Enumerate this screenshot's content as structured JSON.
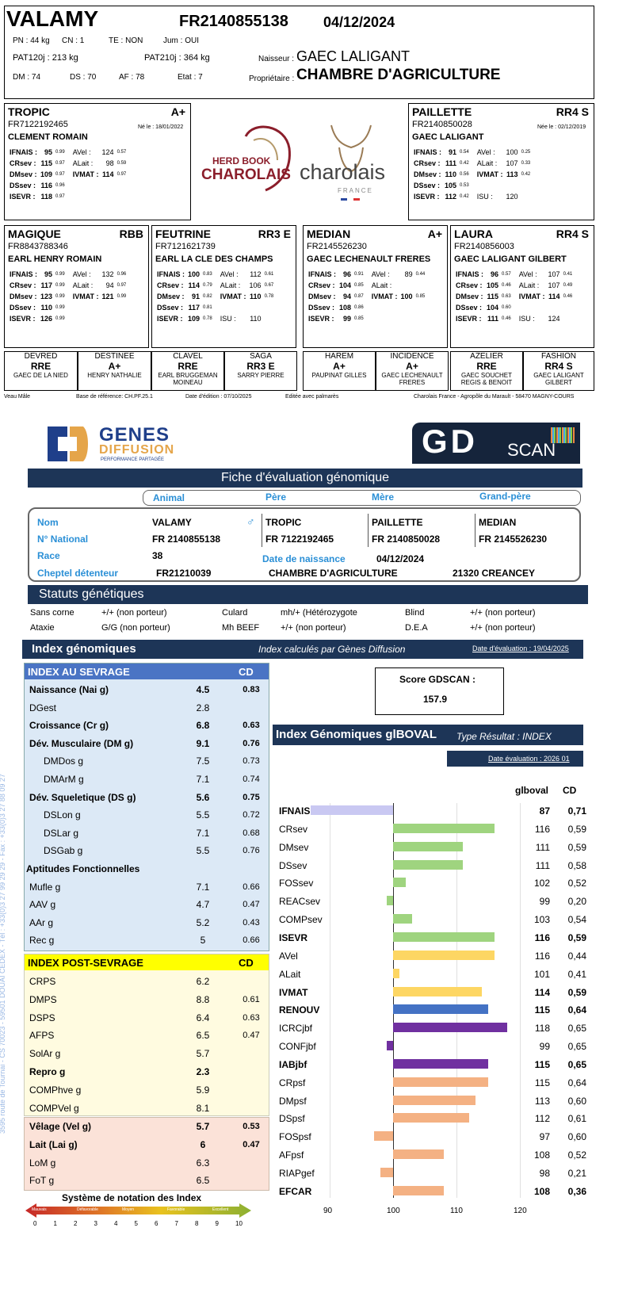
{
  "header": {
    "name": "VALAMY",
    "id": "FR2140855138",
    "date": "04/12/2024",
    "pn": "PN : 44 kg",
    "cn": "CN : 1",
    "te": "TE : NON",
    "jum": "Jum : OUI",
    "pat120": "PAT120j : 213 kg",
    "pat210": "PAT210j : 364 kg",
    "dm": "DM : 74",
    "ds": "DS : 70",
    "af": "AF : 78",
    "etat": "Etat : 7",
    "naisseur_label": "Naisseur :",
    "naisseur": "GAEC LALIGANT",
    "proprio_label": "Propriétaire :",
    "proprio": "CHAMBRE D'AGRICULTURE"
  },
  "logos": {
    "herdbook_top": "HERD BOOK",
    "herdbook_main": "CHAROLAIS",
    "charolais": "charolais",
    "france": "FRANCE"
  },
  "sire": {
    "name": "TROPIC",
    "rank": "A+",
    "id": "FR7122192465",
    "born": "Né le : 18/01/2022",
    "owner": "CLEMENT ROMAIN",
    "rows": [
      [
        "IFNAIS :",
        "95",
        "0.99",
        "AVel :",
        "124",
        "0.57"
      ],
      [
        "CRsev :",
        "115",
        "0.97",
        "ALait :",
        "98",
        "0.59"
      ],
      [
        "DMsev :",
        "109",
        "0.97",
        "IVMAT :",
        "114",
        "0.97"
      ],
      [
        "DSsev :",
        "116",
        "0.96",
        "",
        "",
        ""
      ],
      [
        "ISEVR :",
        "118",
        "0.97",
        "",
        "",
        ""
      ]
    ]
  },
  "dam": {
    "name": "PAILLETTE",
    "rank": "RR4 S",
    "id": "FR2140850028",
    "born": "Née le : 02/12/2019",
    "owner": "GAEC LALIGANT",
    "rows": [
      [
        "IFNAIS :",
        "91",
        "0.54",
        "AVel :",
        "100",
        "0.25"
      ],
      [
        "CRsev :",
        "111",
        "0.42",
        "ALait :",
        "107",
        "0.33"
      ],
      [
        "DMsev :",
        "110",
        "0.56",
        "IVMAT :",
        "113",
        "0.42"
      ],
      [
        "DSsev :",
        "105",
        "0.53",
        "",
        "",
        " "
      ],
      [
        "ISEVR :",
        "112",
        "0.42",
        "ISU :",
        "120",
        ""
      ]
    ]
  },
  "gp": [
    {
      "name": "MAGIQUE",
      "rank": "RBB",
      "id": "FR8843788346",
      "owner": "EARL HENRY ROMAIN",
      "rows": [
        [
          "IFNAIS :",
          "95",
          "0.99",
          "AVel :",
          "132",
          "0.96"
        ],
        [
          "CRsev :",
          "117",
          "0.99",
          "ALait :",
          "94",
          "0.97"
        ],
        [
          "DMsev :",
          "123",
          "0.99",
          "IVMAT :",
          "121",
          "0.99"
        ],
        [
          "DSsev :",
          "110",
          "0.99",
          "",
          "",
          ""
        ],
        [
          "ISEVR :",
          "126",
          "0.99",
          "",
          "",
          ""
        ]
      ]
    },
    {
      "name": "FEUTRINE",
      "rank": "RR3 E",
      "id": "FR7121621739",
      "owner": "EARL LA CLE DES CHAMPS",
      "rows": [
        [
          "IFNAIS :",
          "100",
          "0.83",
          "AVel :",
          "112",
          "0.61"
        ],
        [
          "CRsev :",
          "114",
          "0.79",
          "ALait :",
          "106",
          "0.67"
        ],
        [
          "DMsev :",
          "91",
          "0.82",
          "IVMAT :",
          "110",
          "0.78"
        ],
        [
          "DSsev :",
          "117",
          "0.81",
          "",
          "",
          ""
        ],
        [
          "ISEVR :",
          "109",
          "0.78",
          "ISU :",
          "110",
          ""
        ]
      ]
    },
    {
      "name": "MEDIAN",
      "rank": "A+",
      "id": "FR2145526230",
      "owner": "GAEC LECHENAULT FRERES",
      "rows": [
        [
          "IFNAIS :",
          "96",
          "0.91",
          "AVel :",
          "89",
          "0.44"
        ],
        [
          "CRsev :",
          "104",
          "0.85",
          "ALait :",
          "",
          ""
        ],
        [
          "DMsev :",
          "94",
          "0.87",
          "IVMAT :",
          "100",
          "0.85"
        ],
        [
          "DSsev :",
          "108",
          "0.86",
          "",
          "",
          ""
        ],
        [
          "ISEVR :",
          "99",
          "0.85",
          "",
          "",
          ""
        ]
      ]
    },
    {
      "name": "LAURA",
      "rank": "RR4 S",
      "id": "FR2140856003",
      "owner": "GAEC LALIGANT GILBERT",
      "rows": [
        [
          "IFNAIS :",
          "96",
          "0.57",
          "AVel :",
          "107",
          "0.41"
        ],
        [
          "CRsev :",
          "105",
          "0.46",
          "ALait :",
          "107",
          "0.49"
        ],
        [
          "DMsev :",
          "115",
          "0.63",
          "IVMAT :",
          "114",
          "0.46"
        ],
        [
          "DSsev :",
          "104",
          "0.60",
          "",
          "",
          ""
        ],
        [
          "ISEVR :",
          "111",
          "0.46",
          "ISU :",
          "124",
          ""
        ]
      ]
    }
  ],
  "ggp": [
    {
      "name": "DEVRED",
      "rank": "RRE",
      "owner": "GAEC DE LA NIED"
    },
    {
      "name": "DESTINEE",
      "rank": "A+",
      "owner": "HENRY NATHALIE"
    },
    {
      "name": "CLAVEL",
      "rank": "RRE",
      "owner": "EARL BRUGGEMAN MOINEAU"
    },
    {
      "name": "SAGA",
      "rank": "RR3 E",
      "owner": "SARRY PIERRE"
    },
    {
      "name": "HAREM",
      "rank": "A+",
      "owner": "PAUPINAT GILLES"
    },
    {
      "name": "INCIDENCE",
      "rank": "A+",
      "owner": "GAEC LECHENAULT FRERES"
    },
    {
      "name": "AZELIER",
      "rank": "RRE",
      "owner": "GAEC SOUCHET REGIS & BENOIT"
    },
    {
      "name": "FASHION",
      "rank": "RR4 S",
      "owner": "GAEC LALIGANT GILBERT"
    }
  ],
  "footer": {
    "sex": "Veau Mâle",
    "base": "Base de référence: CH.PF.25.1",
    "edit": "Date d'édition : 07/10/2025",
    "palm": "Editée avec palmarès",
    "addr": "Charolais France - Agropôle du Marault - 58470 MAGNY-COURS"
  },
  "gd": {
    "logo_genes": "GENES",
    "logo_diff": "DIFFUSION",
    "logo_tag": "PERFORMANCE PARTAGÉE",
    "logo_gd": "GD",
    "logo_scan": "SCAN",
    "title": "Fiche d'évaluation génomique",
    "cols": {
      "animal": "Animal",
      "pere": "Père",
      "mere": "Mère",
      "gp": "Grand-père"
    },
    "labels": {
      "nom": "Nom",
      "nat": "N° National",
      "race": "Race",
      "chep": "Cheptel détenteur",
      "dn": "Date de naissance"
    },
    "animal": {
      "nom": "VALAMY",
      "nat": "FR 2140855138",
      "race": "38",
      "dn": "04/12/2024",
      "chep": "FR21210039",
      "chep_name": "CHAMBRE D'AGRICULTURE",
      "chep_city": "21320 CREANCEY"
    },
    "pere": {
      "nom": "TROPIC",
      "nat": "FR 7122192465"
    },
    "mere": {
      "nom": "PAILLETTE",
      "nat": "FR 2140850028"
    },
    "gpere": {
      "nom": "MEDIAN",
      "nat": "FR 2145526230"
    },
    "statuts_title": "Statuts génétiques",
    "statuts": [
      [
        "Sans corne",
        "+/+ (non porteur)",
        "Culard",
        "mh/+ (Hétérozygote",
        "Blind",
        "+/+ (non porteur)"
      ],
      [
        "Ataxie",
        "G/G (non porteur)",
        "Mh BEEF",
        "+/+ (non porteur)",
        "D.E.A",
        "+/+ (non porteur)"
      ]
    ],
    "index_title": "Index génomiques",
    "index_calc": "Index calculés par Gènes Diffusion",
    "index_date": "Date d'évaluation : 19/04/2025",
    "sevrage_title": "INDEX AU SEVRAGE",
    "cd": "CD",
    "post_title": "INDEX POST-SEVRAGE",
    "score_label": "Score GDSCAN :",
    "score": "157.9",
    "iboval_title": "Index Génomiques glBOVAL",
    "iboval_type": "Type Résultat : INDEX",
    "iboval_date": "Date évaluation : 2026 01",
    "col_val": "glboval",
    "col_cd": "CD",
    "notation": "Système de notation des Index",
    "notation_labels": [
      "Mauvais",
      "Défavorable",
      "Moyen",
      "Favorable",
      "Excellent"
    ],
    "notation_scale": [
      "0",
      "1",
      "2",
      "3",
      "4",
      "5",
      "6",
      "7",
      "8",
      "9",
      "10"
    ],
    "side_text": "3595 route de Tournai - CS 70023 - 59501 DOUAI CEDEX - Tél : +33(0)3 27 99 29 29 - Fax : +33(0)3 27 88 09 27"
  },
  "sevrage": [
    {
      "l": "Naissance (Nai g)",
      "v": "4.5",
      "c": "0.83",
      "b": true,
      "i": 0
    },
    {
      "l": "DGest",
      "v": "2.8",
      "c": "",
      "b": false,
      "i": 0
    },
    {
      "l": "Croissance (Cr g)",
      "v": "6.8",
      "c": "0.63",
      "b": true,
      "i": 0
    },
    {
      "l": "Dév. Musculaire (DM g)",
      "v": "9.1",
      "c": "0.76",
      "b": true,
      "i": 0
    },
    {
      "l": "DMDos g",
      "v": "7.5",
      "c": "0.73",
      "b": false,
      "i": 1
    },
    {
      "l": "DMArM g",
      "v": "7.1",
      "c": "0.74",
      "b": false,
      "i": 1
    },
    {
      "l": "Dév. Squeletique (DS g)",
      "v": "5.6",
      "c": "0.75",
      "b": true,
      "i": 0
    },
    {
      "l": "DSLon g",
      "v": "5.5",
      "c": "0.72",
      "b": false,
      "i": 1
    },
    {
      "l": "DSLar g",
      "v": "7.1",
      "c": "0.68",
      "b": false,
      "i": 1
    },
    {
      "l": "DSGab g",
      "v": "5.5",
      "c": "0.76",
      "b": false,
      "i": 1
    },
    {
      "l": "Aptitudes Fonctionnelles",
      "v": "",
      "c": "",
      "b": true,
      "i": -1
    },
    {
      "l": "Mufle g",
      "v": "7.1",
      "c": "0.66",
      "b": false,
      "i": 0
    },
    {
      "l": "AAV g",
      "v": "4.7",
      "c": "0.47",
      "b": false,
      "i": 0
    },
    {
      "l": "AAr g",
      "v": "5.2",
      "c": "0.43",
      "b": false,
      "i": 0
    },
    {
      "l": "Rec g",
      "v": "5",
      "c": "0.66",
      "b": false,
      "i": 0
    }
  ],
  "post": [
    {
      "l": "CRPS",
      "v": "6.2",
      "c": "",
      "b": false
    },
    {
      "l": "DMPS",
      "v": "8.8",
      "c": "0.61",
      "b": false
    },
    {
      "l": "DSPS",
      "v": "6.4",
      "c": "0.63",
      "b": false
    },
    {
      "l": "AFPS",
      "v": "6.5",
      "c": "0.47",
      "b": false
    },
    {
      "l": "SolAr g",
      "v": "5.7",
      "c": "",
      "b": false
    },
    {
      "l": "Repro g",
      "v": "2.3",
      "c": "",
      "b": true
    },
    {
      "l": "COMPhve g",
      "v": "5.9",
      "c": "",
      "b": false
    },
    {
      "l": "COMPVel g",
      "v": "8.1",
      "c": "",
      "b": false
    }
  ],
  "velage": [
    {
      "l": "Vêlage (Vel g)",
      "v": "5.7",
      "c": "0.53",
      "b": true
    },
    {
      "l": "Lait (Lai g)",
      "v": "6",
      "c": "0.47",
      "b": true
    },
    {
      "l": "LoM g",
      "v": "6.3",
      "c": "",
      "b": false
    },
    {
      "l": "FoT g",
      "v": "6.5",
      "c": "",
      "b": false
    }
  ],
  "chart_data": {
    "type": "bar",
    "orientation": "horizontal",
    "title": "Index Génomiques glBOVAL",
    "xlim": [
      90,
      120
    ],
    "xticks": [
      90,
      100,
      110,
      120
    ],
    "ref": 100,
    "categories": [
      "IFNAIS",
      "CRsev",
      "DMsev",
      "DSsev",
      "FOSsev",
      "REACsev",
      "COMPsev",
      "ISEVR",
      "AVel",
      "ALait",
      "IVMAT",
      "RENOUV",
      "ICRCjbf",
      "CONFjbf",
      "IABjbf",
      "CRpsf",
      "DMpsf",
      "DSpsf",
      "FOSpsf",
      "AFpsf",
      "RIAPgef",
      "EFCAR"
    ],
    "values": [
      87,
      116,
      111,
      111,
      102,
      99,
      103,
      116,
      116,
      101,
      114,
      115,
      118,
      99,
      115,
      115,
      113,
      112,
      97,
      108,
      98,
      108
    ],
    "cd": [
      "0,71",
      "0,59",
      "0,59",
      "0,58",
      "0,52",
      "0,20",
      "0,54",
      "0,59",
      "0,44",
      "0,41",
      "0,59",
      "0,64",
      "0,65",
      "0,65",
      "0,65",
      "0,64",
      "0,60",
      "0,61",
      "0,60",
      "0,52",
      "0,21",
      "0,36"
    ],
    "bold": [
      true,
      false,
      false,
      false,
      false,
      false,
      false,
      true,
      false,
      false,
      true,
      true,
      false,
      false,
      true,
      false,
      false,
      false,
      false,
      false,
      false,
      true
    ],
    "colors": [
      "#c9c8f2",
      "#9fd47f",
      "#9fd47f",
      "#9fd47f",
      "#9fd47f",
      "#9fd47f",
      "#9fd47f",
      "#9fd47f",
      "#fdd663",
      "#fdd663",
      "#fdd663",
      "#4472c4",
      "#7030a0",
      "#7030a0",
      "#7030a0",
      "#f4b183",
      "#f4b183",
      "#f4b183",
      "#f4b183",
      "#f4b183",
      "#f4b183",
      "#f4b183"
    ]
  }
}
